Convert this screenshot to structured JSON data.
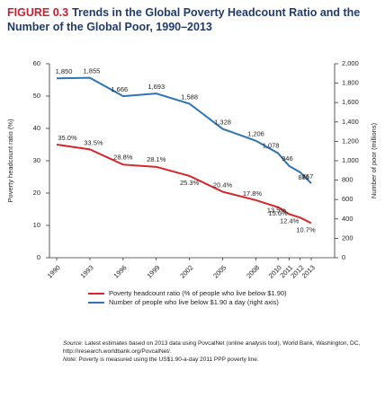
{
  "figure_label": "FIGURE 0.3",
  "chart_data": {
    "type": "line",
    "title": "Trends in the Global Poverty Headcount Ratio and the Number of the Global Poor, 1990–2013",
    "y_label": "Poverty headcount ratio (%)",
    "y2_label": "Number of poor (millions)",
    "x": [
      1990,
      1993,
      1996,
      1999,
      2002,
      2005,
      2008,
      2010,
      2011,
      2012,
      2013
    ],
    "ylim": [
      0,
      60
    ],
    "yticks": [
      0,
      10,
      20,
      30,
      40,
      50,
      60
    ],
    "y2lim": [
      0,
      2000
    ],
    "y2ticks": [
      0,
      200,
      400,
      600,
      800,
      {
        "value": 1000,
        "label": "1,000"
      },
      {
        "value": 1200,
        "label": "1,200"
      },
      {
        "value": 1400,
        "label": "1,400"
      },
      {
        "value": 1600,
        "label": "1,600"
      },
      {
        "value": 1800,
        "label": "1,800"
      },
      {
        "value": 2000,
        "label": "2,000"
      }
    ],
    "series": [
      {
        "name": "Poverty headcount ratio (% of people who live below $1.90)",
        "color": "#d7262b",
        "values": [
          35.0,
          33.5,
          28.8,
          28.1,
          25.3,
          20.4,
          17.8,
          15.6,
          13.5,
          12.4,
          10.7
        ],
        "value_labels": [
          "35.0%",
          "33.5%",
          "28.8%",
          "28.1%",
          "25.3%",
          "20.4%",
          "17.8%",
          "15.6%",
          "13.5%",
          "12.4%",
          "10.7%"
        ]
      },
      {
        "name": "Number of people who live below $1.90 a day (right axis)",
        "color": "#2e74b5",
        "axis": "y2",
        "values": [
          1850,
          1855,
          1666,
          1693,
          1588,
          1328,
          1206,
          1078,
          946,
          881,
          767
        ],
        "value_labels": [
          "1,850",
          "1,855",
          "1,666",
          "1,693",
          "1,588",
          "1,328",
          "1,206",
          "1,078",
          "946",
          "881",
          "767"
        ]
      }
    ]
  },
  "source_label": "Source:",
  "source": "Latest estimates based on 2013 data using PovcalNet (online analysis tool), World Bank, Washington, DC, http://iresearch.worldbank.org/PovcalNet/.",
  "note_label": "Note:",
  "note": "Poverty is measured using the US$1.90-a-day 2011 PPP poverty line."
}
